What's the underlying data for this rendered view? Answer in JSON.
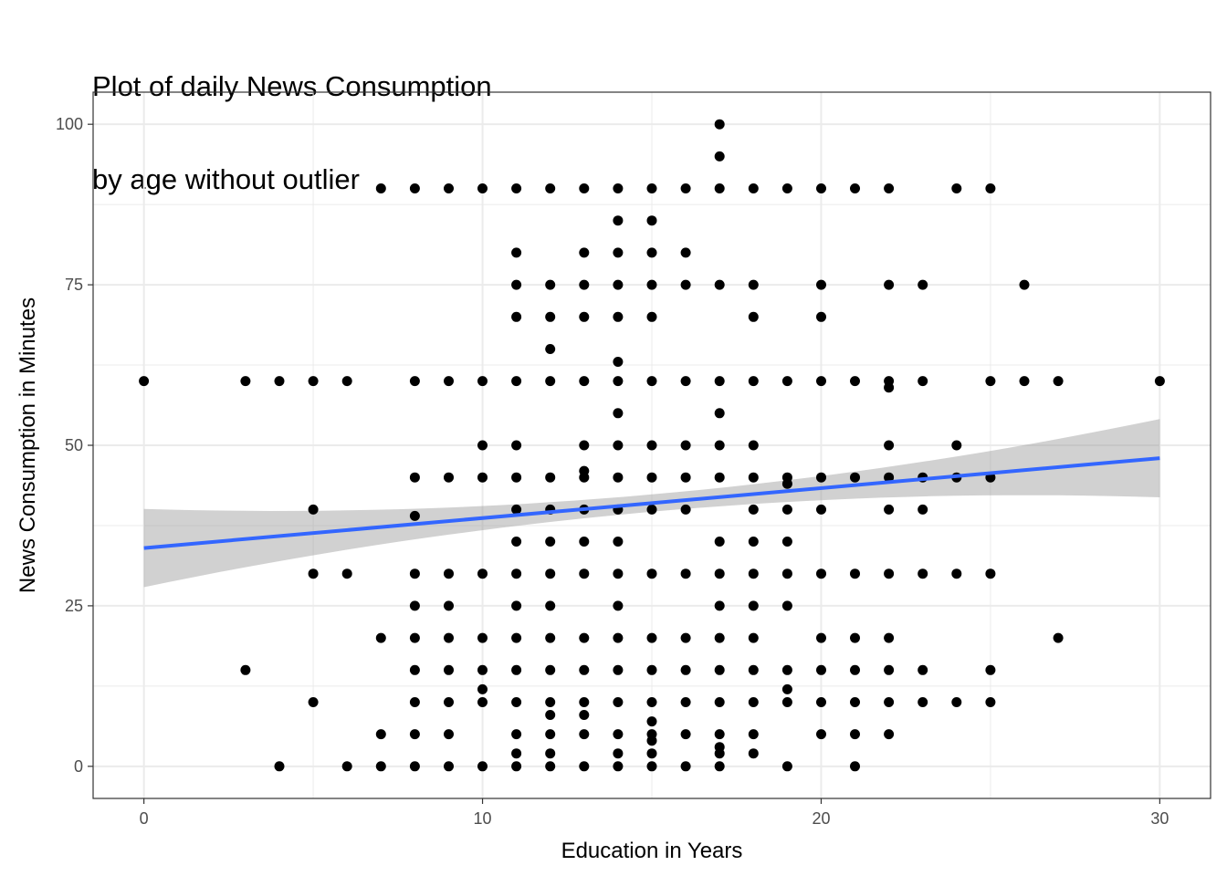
{
  "chart_data": {
    "type": "scatter",
    "title": [
      "Plot of daily News Consumption",
      "by age without outlier"
    ],
    "xlabel": "Education in Years",
    "ylabel": "News Consumption in Minutes",
    "xlim": [
      -1.5,
      31.5
    ],
    "ylim": [
      -5,
      105
    ],
    "x_ticks": [
      0,
      10,
      20,
      30
    ],
    "y_ticks": [
      0,
      25,
      50,
      75,
      100
    ],
    "grid": true,
    "colors": {
      "points": "#000000",
      "fit_line": "#3366ff",
      "ribbon": "#999999",
      "grid": "#ebebeb",
      "panel_border": "#333333"
    },
    "fit": {
      "type": "linear",
      "x": [
        0,
        30
      ],
      "y": [
        34,
        48
      ],
      "ci_lower": [
        27.5,
        41.5
      ],
      "ci_upper": [
        40.5,
        54.3
      ]
    },
    "points": [
      [
        17,
        100
      ],
      [
        17,
        95
      ],
      [
        7,
        90
      ],
      [
        8,
        90
      ],
      [
        9,
        90
      ],
      [
        10,
        90
      ],
      [
        11,
        90
      ],
      [
        12,
        90
      ],
      [
        13,
        90
      ],
      [
        14,
        90
      ],
      [
        15,
        90
      ],
      [
        16,
        90
      ],
      [
        17,
        90
      ],
      [
        18,
        90
      ],
      [
        19,
        90
      ],
      [
        20,
        90
      ],
      [
        21,
        90
      ],
      [
        22,
        90
      ],
      [
        24,
        90
      ],
      [
        25,
        90
      ],
      [
        14,
        85
      ],
      [
        15,
        85
      ],
      [
        11,
        80
      ],
      [
        13,
        80
      ],
      [
        14,
        80
      ],
      [
        15,
        80
      ],
      [
        16,
        80
      ],
      [
        11,
        75
      ],
      [
        12,
        75
      ],
      [
        13,
        75
      ],
      [
        14,
        75
      ],
      [
        15,
        75
      ],
      [
        16,
        75
      ],
      [
        17,
        75
      ],
      [
        18,
        75
      ],
      [
        20,
        75
      ],
      [
        22,
        75
      ],
      [
        23,
        75
      ],
      [
        26,
        75
      ],
      [
        11,
        70
      ],
      [
        12,
        70
      ],
      [
        13,
        70
      ],
      [
        14,
        70
      ],
      [
        15,
        70
      ],
      [
        18,
        70
      ],
      [
        20,
        70
      ],
      [
        12,
        65
      ],
      [
        14,
        63
      ],
      [
        0,
        60
      ],
      [
        3,
        60
      ],
      [
        4,
        60
      ],
      [
        5,
        60
      ],
      [
        6,
        60
      ],
      [
        8,
        60
      ],
      [
        9,
        60
      ],
      [
        10,
        60
      ],
      [
        11,
        60
      ],
      [
        12,
        60
      ],
      [
        13,
        60
      ],
      [
        14,
        60
      ],
      [
        15,
        60
      ],
      [
        16,
        60
      ],
      [
        17,
        60
      ],
      [
        18,
        60
      ],
      [
        19,
        60
      ],
      [
        20,
        60
      ],
      [
        21,
        60
      ],
      [
        22,
        60
      ],
      [
        23,
        60
      ],
      [
        25,
        60
      ],
      [
        26,
        60
      ],
      [
        27,
        60
      ],
      [
        30,
        60
      ],
      [
        22,
        59
      ],
      [
        14,
        55
      ],
      [
        17,
        55
      ],
      [
        10,
        50
      ],
      [
        11,
        50
      ],
      [
        13,
        50
      ],
      [
        14,
        50
      ],
      [
        15,
        50
      ],
      [
        16,
        50
      ],
      [
        17,
        50
      ],
      [
        18,
        50
      ],
      [
        22,
        50
      ],
      [
        24,
        50
      ],
      [
        13,
        46
      ],
      [
        8,
        45
      ],
      [
        9,
        45
      ],
      [
        10,
        45
      ],
      [
        11,
        45
      ],
      [
        12,
        45
      ],
      [
        13,
        45
      ],
      [
        14,
        45
      ],
      [
        15,
        45
      ],
      [
        16,
        45
      ],
      [
        17,
        45
      ],
      [
        18,
        45
      ],
      [
        19,
        45
      ],
      [
        20,
        45
      ],
      [
        21,
        45
      ],
      [
        22,
        45
      ],
      [
        23,
        45
      ],
      [
        24,
        45
      ],
      [
        25,
        45
      ],
      [
        19,
        44
      ],
      [
        5,
        40
      ],
      [
        11,
        40
      ],
      [
        12,
        40
      ],
      [
        13,
        40
      ],
      [
        14,
        40
      ],
      [
        15,
        40
      ],
      [
        16,
        40
      ],
      [
        18,
        40
      ],
      [
        19,
        40
      ],
      [
        20,
        40
      ],
      [
        22,
        40
      ],
      [
        23,
        40
      ],
      [
        8,
        39
      ],
      [
        11,
        35
      ],
      [
        12,
        35
      ],
      [
        13,
        35
      ],
      [
        14,
        35
      ],
      [
        17,
        35
      ],
      [
        18,
        35
      ],
      [
        19,
        35
      ],
      [
        5,
        30
      ],
      [
        6,
        30
      ],
      [
        8,
        30
      ],
      [
        9,
        30
      ],
      [
        10,
        30
      ],
      [
        11,
        30
      ],
      [
        12,
        30
      ],
      [
        13,
        30
      ],
      [
        14,
        30
      ],
      [
        15,
        30
      ],
      [
        16,
        30
      ],
      [
        17,
        30
      ],
      [
        18,
        30
      ],
      [
        19,
        30
      ],
      [
        20,
        30
      ],
      [
        21,
        30
      ],
      [
        22,
        30
      ],
      [
        23,
        30
      ],
      [
        24,
        30
      ],
      [
        25,
        30
      ],
      [
        8,
        25
      ],
      [
        9,
        25
      ],
      [
        11,
        25
      ],
      [
        12,
        25
      ],
      [
        14,
        25
      ],
      [
        17,
        25
      ],
      [
        18,
        25
      ],
      [
        19,
        25
      ],
      [
        7,
        20
      ],
      [
        8,
        20
      ],
      [
        9,
        20
      ],
      [
        10,
        20
      ],
      [
        11,
        20
      ],
      [
        12,
        20
      ],
      [
        13,
        20
      ],
      [
        14,
        20
      ],
      [
        15,
        20
      ],
      [
        16,
        20
      ],
      [
        17,
        20
      ],
      [
        18,
        20
      ],
      [
        20,
        20
      ],
      [
        21,
        20
      ],
      [
        22,
        20
      ],
      [
        27,
        20
      ],
      [
        3,
        15
      ],
      [
        8,
        15
      ],
      [
        9,
        15
      ],
      [
        10,
        15
      ],
      [
        11,
        15
      ],
      [
        12,
        15
      ],
      [
        13,
        15
      ],
      [
        14,
        15
      ],
      [
        15,
        15
      ],
      [
        16,
        15
      ],
      [
        17,
        15
      ],
      [
        18,
        15
      ],
      [
        19,
        15
      ],
      [
        20,
        15
      ],
      [
        21,
        15
      ],
      [
        22,
        15
      ],
      [
        23,
        15
      ],
      [
        25,
        15
      ],
      [
        10,
        12
      ],
      [
        19,
        12
      ],
      [
        5,
        10
      ],
      [
        8,
        10
      ],
      [
        9,
        10
      ],
      [
        10,
        10
      ],
      [
        11,
        10
      ],
      [
        12,
        10
      ],
      [
        13,
        10
      ],
      [
        14,
        10
      ],
      [
        15,
        10
      ],
      [
        16,
        10
      ],
      [
        17,
        10
      ],
      [
        18,
        10
      ],
      [
        19,
        10
      ],
      [
        20,
        10
      ],
      [
        21,
        10
      ],
      [
        22,
        10
      ],
      [
        23,
        10
      ],
      [
        24,
        10
      ],
      [
        25,
        10
      ],
      [
        12,
        8
      ],
      [
        13,
        8
      ],
      [
        15,
        7
      ],
      [
        7,
        5
      ],
      [
        8,
        5
      ],
      [
        9,
        5
      ],
      [
        11,
        5
      ],
      [
        12,
        5
      ],
      [
        13,
        5
      ],
      [
        14,
        5
      ],
      [
        15,
        5
      ],
      [
        16,
        5
      ],
      [
        17,
        5
      ],
      [
        18,
        5
      ],
      [
        20,
        5
      ],
      [
        21,
        5
      ],
      [
        22,
        5
      ],
      [
        15,
        4
      ],
      [
        17,
        3
      ],
      [
        11,
        2
      ],
      [
        12,
        2
      ],
      [
        14,
        2
      ],
      [
        15,
        2
      ],
      [
        17,
        2
      ],
      [
        18,
        2
      ],
      [
        4,
        0
      ],
      [
        6,
        0
      ],
      [
        7,
        0
      ],
      [
        8,
        0
      ],
      [
        9,
        0
      ],
      [
        10,
        0
      ],
      [
        11,
        0
      ],
      [
        12,
        0
      ],
      [
        13,
        0
      ],
      [
        14,
        0
      ],
      [
        15,
        0
      ],
      [
        16,
        0
      ],
      [
        17,
        0
      ],
      [
        19,
        0
      ],
      [
        21,
        0
      ]
    ]
  }
}
